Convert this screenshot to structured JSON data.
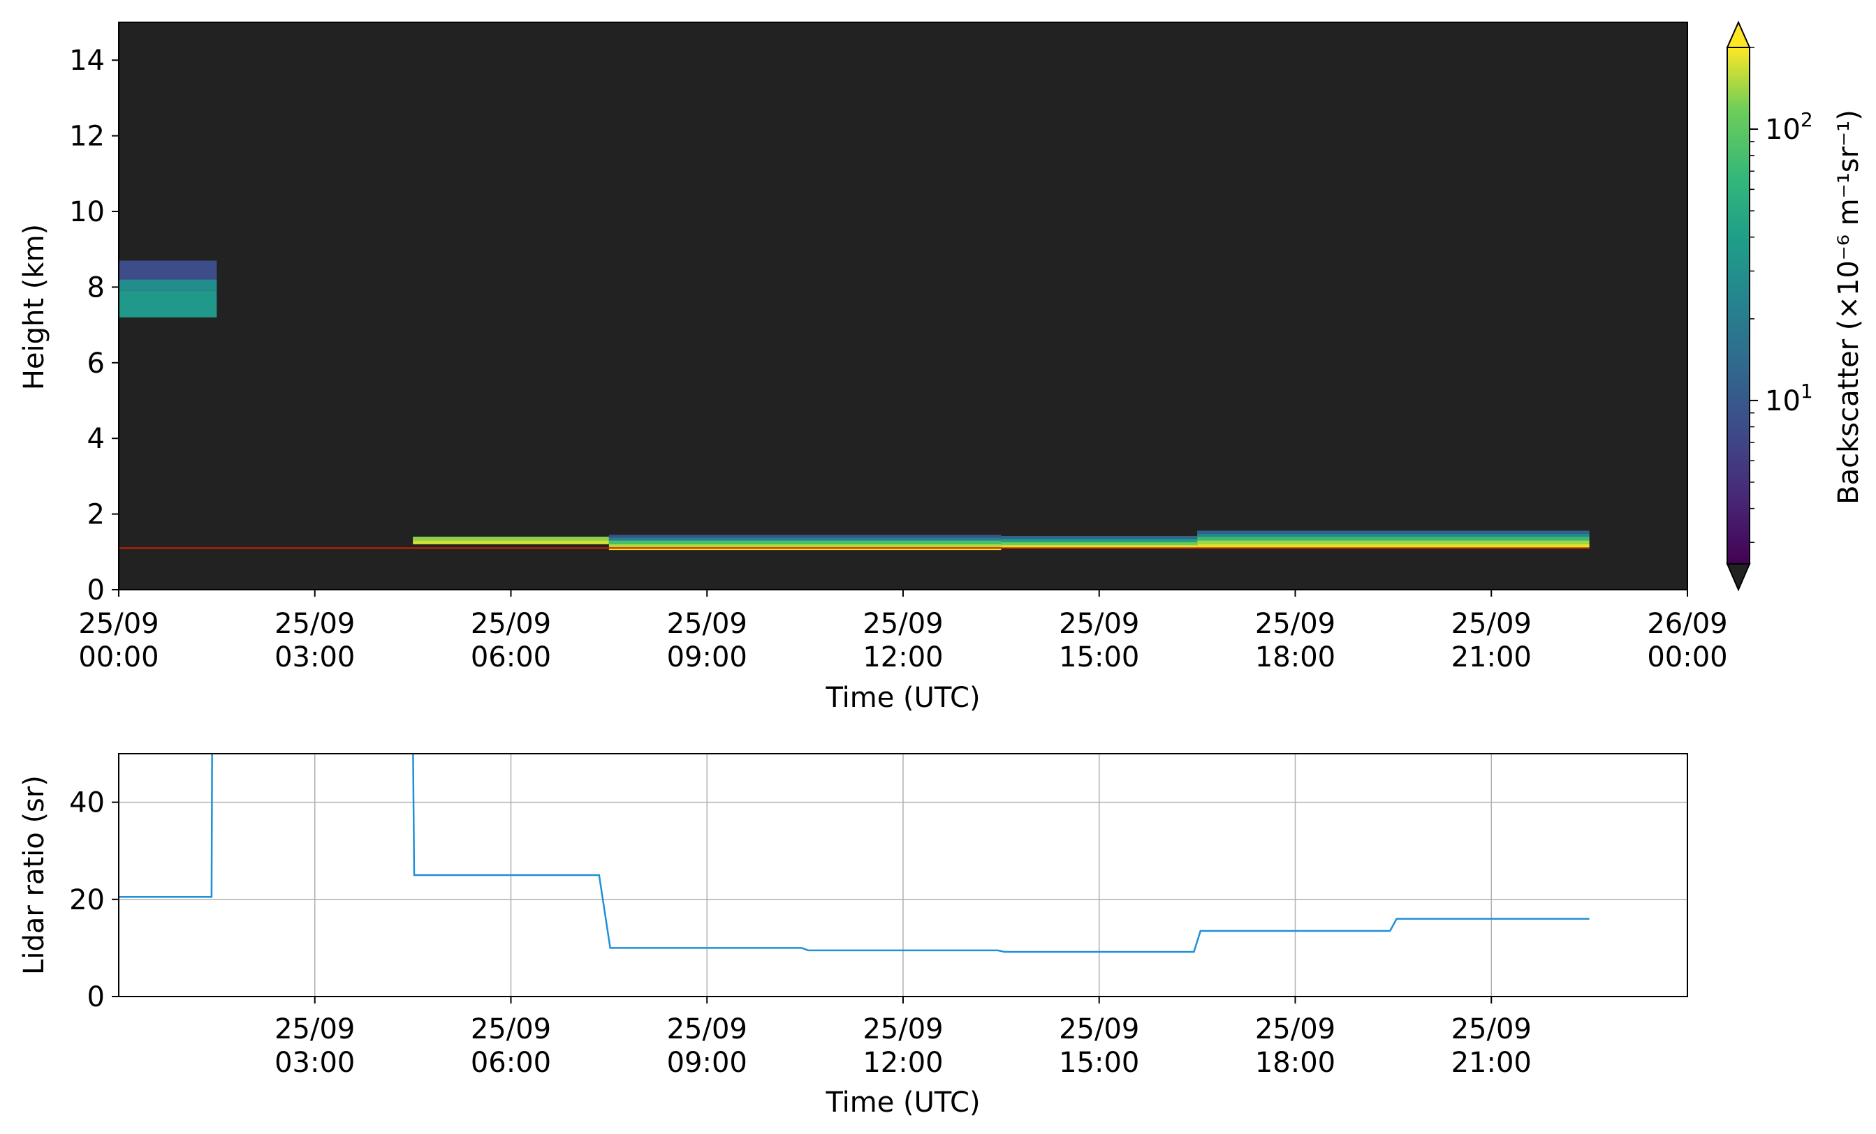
{
  "chart_data": [
    {
      "type": "heatmap",
      "title": "",
      "xlabel": "Time (UTC)",
      "ylabel": "Height (km)",
      "xlim": [
        "25/09 00:00",
        "26/09 00:00"
      ],
      "ylim": [
        0,
        15
      ],
      "x_ticks": [
        {
          "hour": 0,
          "label": [
            "25/09",
            "00:00"
          ]
        },
        {
          "hour": 3,
          "label": [
            "25/09",
            "03:00"
          ]
        },
        {
          "hour": 6,
          "label": [
            "25/09",
            "06:00"
          ]
        },
        {
          "hour": 9,
          "label": [
            "25/09",
            "09:00"
          ]
        },
        {
          "hour": 12,
          "label": [
            "25/09",
            "12:00"
          ]
        },
        {
          "hour": 15,
          "label": [
            "25/09",
            "15:00"
          ]
        },
        {
          "hour": 18,
          "label": [
            "25/09",
            "18:00"
          ]
        },
        {
          "hour": 21,
          "label": [
            "25/09",
            "21:00"
          ]
        },
        {
          "hour": 24,
          "label": [
            "26/09",
            "00:00"
          ]
        }
      ],
      "y_ticks": [
        0,
        2,
        4,
        6,
        8,
        10,
        12,
        14
      ],
      "background_color": "#222222",
      "colorbar": {
        "label": "Backscatter (×10⁻⁶ m⁻¹sr⁻¹)",
        "colormap": "viridis",
        "scale": "log",
        "range": [
          2.5,
          200
        ],
        "extend": "both",
        "under_color": "#222222",
        "major_ticks": [
          {
            "value": 10,
            "base": "10",
            "exp": "1"
          },
          {
            "value": 100,
            "base": "10",
            "exp": "2"
          }
        ]
      },
      "blocks": [
        {
          "t0": 0,
          "t1": 1.5,
          "layers": [
            {
              "h0": 7.2,
              "h1": 7.9,
              "value": 35
            },
            {
              "h0": 7.9,
              "h1": 8.2,
              "value": 28
            },
            {
              "h0": 8.2,
              "h1": 8.7,
              "value": 8
            }
          ]
        },
        {
          "t0": 4.5,
          "t1": 7.5,
          "layers": [
            {
              "h0": 1.2,
              "h1": 1.3,
              "value": 170
            },
            {
              "h0": 1.3,
              "h1": 1.4,
              "value": 130
            }
          ]
        },
        {
          "t0": 7.5,
          "t1": 13.5,
          "layers": [
            {
              "h0": 1.05,
              "h1": 1.12,
              "value": 200
            },
            {
              "h0": 1.12,
              "h1": 1.2,
              "value": 150
            },
            {
              "h0": 1.2,
              "h1": 1.3,
              "value": 80
            },
            {
              "h0": 1.3,
              "h1": 1.38,
              "value": 20
            },
            {
              "h0": 1.38,
              "h1": 1.45,
              "value": 9
            }
          ]
        },
        {
          "t0": 13.5,
          "t1": 16.5,
          "layers": [
            {
              "h0": 1.1,
              "h1": 1.18,
              "value": 180
            },
            {
              "h0": 1.18,
              "h1": 1.26,
              "value": 110
            },
            {
              "h0": 1.26,
              "h1": 1.34,
              "value": 40
            },
            {
              "h0": 1.34,
              "h1": 1.42,
              "value": 12
            }
          ]
        },
        {
          "t0": 16.5,
          "t1": 22.5,
          "layers": [
            {
              "h0": 1.1,
              "h1": 1.2,
              "value": 180
            },
            {
              "h0": 1.2,
              "h1": 1.3,
              "value": 140
            },
            {
              "h0": 1.3,
              "h1": 1.4,
              "value": 70
            },
            {
              "h0": 1.4,
              "h1": 1.48,
              "value": 25
            },
            {
              "h0": 1.48,
              "h1": 1.56,
              "value": 12
            }
          ]
        }
      ],
      "red_line": {
        "height": 1.1,
        "t0": 0,
        "t1": 22.5,
        "color": "#cc2200"
      }
    },
    {
      "type": "line",
      "title": "",
      "xlabel": "Time (UTC)",
      "ylabel": "Lidar ratio (sr)",
      "xlim": [
        "25/09 00:00",
        "26/09 00:00"
      ],
      "ylim": [
        0,
        50
      ],
      "grid": true,
      "x_ticks": [
        {
          "hour": 3,
          "label": [
            "25/09",
            "03:00"
          ]
        },
        {
          "hour": 6,
          "label": [
            "25/09",
            "06:00"
          ]
        },
        {
          "hour": 9,
          "label": [
            "25/09",
            "09:00"
          ]
        },
        {
          "hour": 12,
          "label": [
            "25/09",
            "12:00"
          ]
        },
        {
          "hour": 15,
          "label": [
            "25/09",
            "15:00"
          ]
        },
        {
          "hour": 18,
          "label": [
            "25/09",
            "18:00"
          ]
        },
        {
          "hour": 21,
          "label": [
            "25/09",
            "21:00"
          ]
        }
      ],
      "y_ticks": [
        0,
        20,
        40
      ],
      "series": [
        {
          "color": "#1f8fd8",
          "x_hours": [
            0,
            1.42,
            1.43,
            4.5,
            4.52,
            7.35,
            7.52,
            10.45,
            10.55,
            13.45,
            13.55,
            16.45,
            16.55,
            19.45,
            19.55,
            22.5
          ],
          "values": [
            20.5,
            20.5,
            55,
            55,
            25,
            25,
            10,
            10,
            9.5,
            9.5,
            9.2,
            9.2,
            13.5,
            13.5,
            16,
            16
          ]
        }
      ]
    }
  ]
}
